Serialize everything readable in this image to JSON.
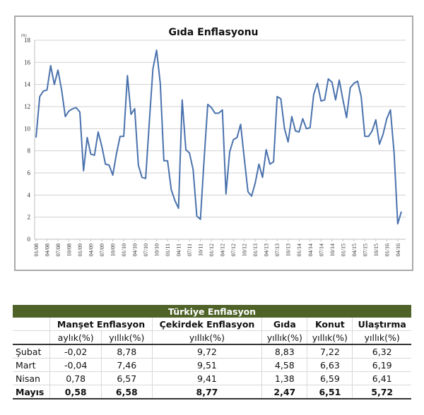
{
  "chart_data": {
    "type": "line",
    "title": "Gıda Enflasyonu",
    "unit_label": "(%)",
    "xlabel": "",
    "ylabel": "(%)",
    "ylim": [
      0,
      18
    ],
    "yticks": [
      0,
      2,
      4,
      6,
      8,
      10,
      12,
      14,
      16,
      18
    ],
    "grid": true,
    "legend": "none",
    "x_tick_labels": [
      "01/08",
      "04/08",
      "07/08",
      "10/08",
      "01/09",
      "04/09",
      "07/09",
      "10/09",
      "01/10",
      "04/10",
      "07/10",
      "10/10",
      "01/11",
      "04/11",
      "07/11",
      "10/11",
      "01/12",
      "04/12",
      "07/12",
      "10/12",
      "01/13",
      "04/13",
      "07/13",
      "10/13",
      "01/14",
      "04/14",
      "07/14",
      "10/14",
      "01/15",
      "04/15",
      "07/15",
      "10/15",
      "01/16",
      "04/16"
    ],
    "x_start": "01/08",
    "x_end": "05/16",
    "series": [
      {
        "name": "Gıda Enflasyonu",
        "color": "#4a72ad",
        "values": [
          9.2,
          12.9,
          13.4,
          13.5,
          15.7,
          14.0,
          15.3,
          13.5,
          11.1,
          11.6,
          11.8,
          11.9,
          11.5,
          6.2,
          9.2,
          7.7,
          7.6,
          9.7,
          8.4,
          6.8,
          6.7,
          5.8,
          7.7,
          9.3,
          9.3,
          14.8,
          11.3,
          11.8,
          6.7,
          5.6,
          5.5,
          10.6,
          15.4,
          17.1,
          14.1,
          7.1,
          7.1,
          4.5,
          3.5,
          2.8,
          12.6,
          8.1,
          7.8,
          6.3,
          2.1,
          1.8,
          7.2,
          12.2,
          11.9,
          11.4,
          11.4,
          11.7,
          4.1,
          7.9,
          9.0,
          9.2,
          10.4,
          7.3,
          4.3,
          3.9,
          5.1,
          6.8,
          5.6,
          8.1,
          6.8,
          7.0,
          12.9,
          12.7,
          10.0,
          8.8,
          11.1,
          9.8,
          9.7,
          10.9,
          10.0,
          10.1,
          13.1,
          14.1,
          12.5,
          12.6,
          14.5,
          14.2,
          12.6,
          14.4,
          12.6,
          11.0,
          13.7,
          14.1,
          14.3,
          12.9,
          9.3,
          9.3,
          9.8,
          10.8,
          8.6,
          9.5,
          10.9,
          11.7,
          7.8,
          1.4,
          2.5
        ]
      }
    ]
  },
  "table": {
    "title": "Türkiye Enflasyon",
    "groups": [
      "Manşet Enflasyon",
      "Çekirdek Enflasyon",
      "Gıda",
      "Konut",
      "Ulaştırma"
    ],
    "subheaders": [
      "aylık(%)",
      "yıllık(%)",
      "yıllık(%)",
      "yıllık(%)",
      "yıllık(%)",
      "yıllık(%)"
    ],
    "rows": [
      {
        "month": "Şubat",
        "values": [
          "-0,02",
          "8,78",
          "9,72",
          "8,83",
          "7,22",
          "6,32"
        ],
        "bold": false
      },
      {
        "month": "Mart",
        "values": [
          "-0,04",
          "7,46",
          "9,51",
          "4,58",
          "6,63",
          "6,19"
        ],
        "bold": false
      },
      {
        "month": "Nisan",
        "values": [
          "0,78",
          "6,57",
          "9,41",
          "1,38",
          "6,59",
          "6,41"
        ],
        "bold": false
      },
      {
        "month": "Mayıs",
        "values": [
          "0,58",
          "6,58",
          "8,77",
          "2,47",
          "6,51",
          "5,72"
        ],
        "bold": true
      }
    ]
  }
}
